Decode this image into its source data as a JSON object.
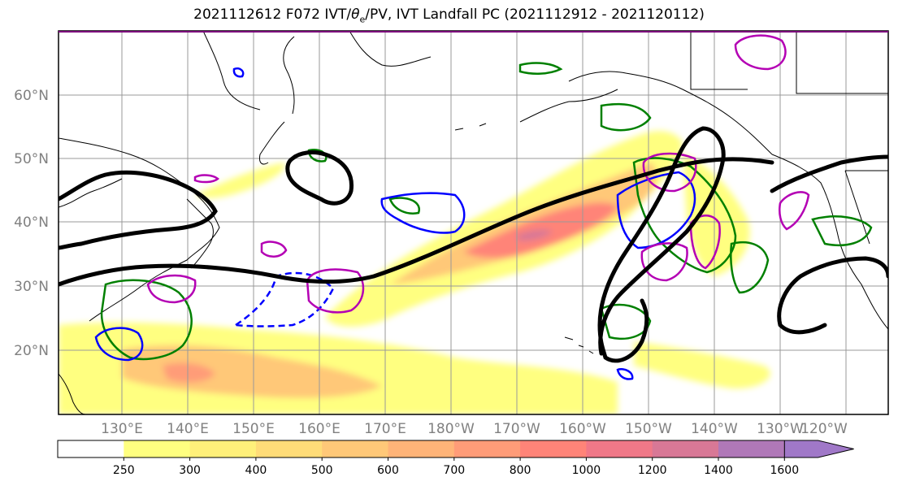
{
  "title_prefix": "2021112612 F072 IVT/",
  "title_theta": "θ",
  "title_sub": "e",
  "title_suffix": "/PV, IVT Landfall PC (2021112912 - 2021120112)",
  "lat_labels": [
    "60°N",
    "50°N",
    "40°N",
    "30°N",
    "20°N"
  ],
  "lon_labels": [
    "130°E",
    "140°E",
    "150°E",
    "160°E",
    "170°E",
    "180°W",
    "170°W",
    "160°W",
    "150°W",
    "140°W",
    "130°W",
    "120°W"
  ],
  "colorbar": {
    "levels": [
      "250",
      "300",
      "400",
      "500",
      "600",
      "700",
      "800",
      "1000",
      "1200",
      "1400",
      "1600"
    ],
    "colors": [
      "#ffffff",
      "#ffff80",
      "#fff07a",
      "#ffdc78",
      "#ffc878",
      "#ffb478",
      "#ff9c78",
      "#ff8478",
      "#f07888",
      "#d87896",
      "#b078b8",
      "#a078c8"
    ]
  },
  "colors": {
    "ivt_fill_low": "#ffff80",
    "ivt_fill_mid": "#ffc878",
    "ivt_fill_high": "#ff8478",
    "pv_contour": "#000000",
    "green_contour": "#008000",
    "blue_contour": "#0000ff",
    "magenta_contour": "#b400b4"
  }
}
